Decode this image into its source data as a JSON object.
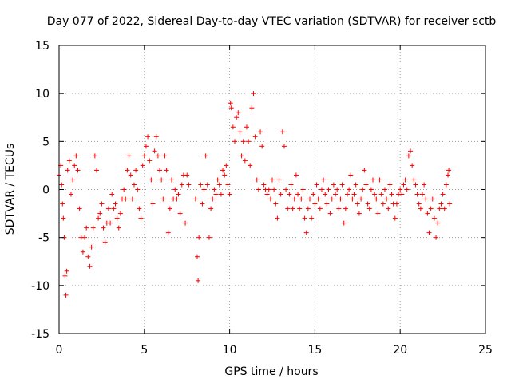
{
  "chart_data": {
    "type": "scatter",
    "title": "Day 077 of 2022, Sidereal Day-to-day VTEC variation (SDTVAR) for receiver sctb",
    "xlabel": "GPS time / hours",
    "ylabel": "SDTVAR / TECUs",
    "xlim": [
      0,
      25
    ],
    "ylim": [
      -15,
      15
    ],
    "xticks": [
      0,
      5,
      10,
      15,
      20,
      25
    ],
    "yticks": [
      -15,
      -10,
      -5,
      0,
      5,
      10,
      15
    ],
    "grid": true,
    "marker": "+",
    "series": [
      {
        "name": "sctb",
        "color": "#ff0000",
        "points": [
          [
            0.0,
            1.5
          ],
          [
            0.1,
            2.5
          ],
          [
            0.15,
            0.5
          ],
          [
            0.2,
            -1.5
          ],
          [
            0.25,
            -3.0
          ],
          [
            0.3,
            -5.0
          ],
          [
            0.35,
            -9.0
          ],
          [
            0.4,
            -11.0
          ],
          [
            0.45,
            -8.5
          ],
          [
            0.5,
            2.0
          ],
          [
            0.6,
            3.0
          ],
          [
            0.7,
            -0.5
          ],
          [
            0.8,
            1.0
          ],
          [
            0.9,
            2.5
          ],
          [
            1.0,
            3.5
          ],
          [
            1.1,
            2.0
          ],
          [
            1.2,
            -2.0
          ],
          [
            1.3,
            -5.0
          ],
          [
            1.4,
            -6.5
          ],
          [
            1.5,
            -5.0
          ],
          [
            1.6,
            -4.0
          ],
          [
            1.7,
            -7.0
          ],
          [
            1.8,
            -8.0
          ],
          [
            1.9,
            -6.0
          ],
          [
            2.0,
            -4.0
          ],
          [
            2.1,
            3.5
          ],
          [
            2.2,
            2.0
          ],
          [
            2.3,
            -3.0
          ],
          [
            2.4,
            -2.5
          ],
          [
            2.5,
            -1.5
          ],
          [
            2.6,
            -4.0
          ],
          [
            2.7,
            -5.5
          ],
          [
            2.8,
            -3.5
          ],
          [
            2.9,
            -2.0
          ],
          [
            3.0,
            -3.5
          ],
          [
            3.1,
            -0.5
          ],
          [
            3.2,
            -2.0
          ],
          [
            3.3,
            -1.5
          ],
          [
            3.4,
            -3.0
          ],
          [
            3.5,
            -4.0
          ],
          [
            3.6,
            -2.5
          ],
          [
            3.7,
            -1.0
          ],
          [
            3.8,
            0.0
          ],
          [
            3.9,
            -1.0
          ],
          [
            4.0,
            2.0
          ],
          [
            4.1,
            3.5
          ],
          [
            4.2,
            1.5
          ],
          [
            4.3,
            -1.0
          ],
          [
            4.4,
            0.5
          ],
          [
            4.5,
            2.0
          ],
          [
            4.6,
            0.0
          ],
          [
            4.7,
            -2.0
          ],
          [
            4.8,
            -3.0
          ],
          [
            4.9,
            2.5
          ],
          [
            5.0,
            3.5
          ],
          [
            5.1,
            4.5
          ],
          [
            5.2,
            5.5
          ],
          [
            5.3,
            3.0
          ],
          [
            5.4,
            1.0
          ],
          [
            5.5,
            -1.5
          ],
          [
            5.6,
            4.0
          ],
          [
            5.7,
            5.5
          ],
          [
            5.8,
            3.5
          ],
          [
            5.9,
            2.0
          ],
          [
            6.0,
            1.0
          ],
          [
            6.1,
            -1.0
          ],
          [
            6.2,
            3.5
          ],
          [
            6.3,
            2.0
          ],
          [
            6.4,
            -4.5
          ],
          [
            6.5,
            -2.0
          ],
          [
            6.6,
            1.0
          ],
          [
            6.7,
            -1.0
          ],
          [
            6.8,
            0.0
          ],
          [
            6.9,
            -1.0
          ],
          [
            7.0,
            -0.5
          ],
          [
            7.1,
            -2.5
          ],
          [
            7.2,
            0.5
          ],
          [
            7.3,
            1.5
          ],
          [
            7.4,
            -3.5
          ],
          [
            7.5,
            1.5
          ],
          [
            7.6,
            0.5
          ],
          [
            8.0,
            -1.0
          ],
          [
            8.1,
            -7.0
          ],
          [
            8.15,
            -9.5
          ],
          [
            8.2,
            -5.0
          ],
          [
            8.3,
            0.5
          ],
          [
            8.4,
            -1.5
          ],
          [
            8.5,
            0.0
          ],
          [
            8.6,
            3.5
          ],
          [
            8.7,
            0.5
          ],
          [
            8.8,
            -5.0
          ],
          [
            8.9,
            -2.0
          ],
          [
            9.0,
            -1.0
          ],
          [
            9.1,
            0.0
          ],
          [
            9.2,
            -0.5
          ],
          [
            9.3,
            1.0
          ],
          [
            9.4,
            0.5
          ],
          [
            9.5,
            -0.5
          ],
          [
            9.6,
            2.0
          ],
          [
            9.7,
            1.5
          ],
          [
            9.8,
            2.5
          ],
          [
            9.9,
            0.5
          ],
          [
            10.0,
            -0.5
          ],
          [
            10.05,
            9.0
          ],
          [
            10.1,
            8.5
          ],
          [
            10.2,
            6.5
          ],
          [
            10.3,
            5.0
          ],
          [
            10.4,
            7.5
          ],
          [
            10.5,
            8.0
          ],
          [
            10.6,
            6.0
          ],
          [
            10.7,
            3.5
          ],
          [
            10.8,
            5.0
          ],
          [
            10.9,
            3.0
          ],
          [
            11.0,
            6.5
          ],
          [
            11.1,
            5.0
          ],
          [
            11.2,
            2.5
          ],
          [
            11.3,
            8.5
          ],
          [
            11.4,
            10.0
          ],
          [
            11.5,
            5.5
          ],
          [
            11.6,
            1.0
          ],
          [
            11.7,
            0.0
          ],
          [
            11.8,
            6.0
          ],
          [
            11.9,
            4.5
          ],
          [
            12.0,
            0.5
          ],
          [
            12.1,
            0.0
          ],
          [
            12.2,
            -0.5
          ],
          [
            12.3,
            0.0
          ],
          [
            12.4,
            -1.0
          ],
          [
            12.5,
            1.0
          ],
          [
            12.6,
            0.0
          ],
          [
            12.7,
            -1.5
          ],
          [
            12.8,
            -3.0
          ],
          [
            12.9,
            1.0
          ],
          [
            13.0,
            -0.5
          ],
          [
            13.1,
            6.0
          ],
          [
            13.2,
            4.5
          ],
          [
            13.3,
            0.0
          ],
          [
            13.4,
            -2.0
          ],
          [
            13.5,
            -0.5
          ],
          [
            13.6,
            0.5
          ],
          [
            13.7,
            -2.0
          ],
          [
            13.8,
            -1.0
          ],
          [
            13.9,
            1.5
          ],
          [
            14.0,
            -0.5
          ],
          [
            14.1,
            -2.0
          ],
          [
            14.2,
            -1.0
          ],
          [
            14.3,
            0.0
          ],
          [
            14.4,
            -3.0
          ],
          [
            14.5,
            -4.5
          ],
          [
            14.6,
            -2.0
          ],
          [
            14.7,
            -1.0
          ],
          [
            14.8,
            -3.0
          ],
          [
            14.9,
            -0.5
          ],
          [
            15.0,
            -1.5
          ],
          [
            15.1,
            0.5
          ],
          [
            15.2,
            -1.0
          ],
          [
            15.3,
            -2.0
          ],
          [
            15.4,
            0.0
          ],
          [
            15.5,
            1.0
          ],
          [
            15.6,
            -0.5
          ],
          [
            15.7,
            -1.5
          ],
          [
            15.8,
            0.0
          ],
          [
            15.9,
            -2.5
          ],
          [
            16.0,
            -1.0
          ],
          [
            16.1,
            0.5
          ],
          [
            16.2,
            -0.5
          ],
          [
            16.3,
            0.0
          ],
          [
            16.4,
            -2.0
          ],
          [
            16.5,
            -1.0
          ],
          [
            16.6,
            0.5
          ],
          [
            16.7,
            -3.5
          ],
          [
            16.8,
            -2.0
          ],
          [
            16.9,
            -0.5
          ],
          [
            17.0,
            0.0
          ],
          [
            17.1,
            1.5
          ],
          [
            17.2,
            -1.0
          ],
          [
            17.3,
            -0.5
          ],
          [
            17.4,
            0.5
          ],
          [
            17.5,
            -1.5
          ],
          [
            17.6,
            -2.5
          ],
          [
            17.7,
            -1.0
          ],
          [
            17.8,
            0.0
          ],
          [
            17.9,
            2.0
          ],
          [
            18.0,
            0.5
          ],
          [
            18.1,
            -1.5
          ],
          [
            18.2,
            -2.0
          ],
          [
            18.3,
            0.0
          ],
          [
            18.4,
            1.0
          ],
          [
            18.5,
            -0.5
          ],
          [
            18.6,
            -1.0
          ],
          [
            18.7,
            -2.5
          ],
          [
            18.8,
            1.0
          ],
          [
            18.9,
            -0.5
          ],
          [
            19.0,
            -1.5
          ],
          [
            19.1,
            0.0
          ],
          [
            19.2,
            -1.0
          ],
          [
            19.3,
            -2.0
          ],
          [
            19.4,
            0.5
          ],
          [
            19.5,
            -0.5
          ],
          [
            19.6,
            -1.5
          ],
          [
            19.7,
            -3.0
          ],
          [
            19.8,
            -1.5
          ],
          [
            19.9,
            -0.5
          ],
          [
            20.0,
            0.0
          ],
          [
            20.1,
            -0.5
          ],
          [
            20.2,
            0.5
          ],
          [
            20.3,
            1.0
          ],
          [
            20.4,
            0.0
          ],
          [
            20.5,
            3.5
          ],
          [
            20.6,
            4.0
          ],
          [
            20.7,
            2.5
          ],
          [
            20.8,
            1.0
          ],
          [
            20.9,
            0.5
          ],
          [
            21.0,
            -0.5
          ],
          [
            21.1,
            -1.5
          ],
          [
            21.2,
            -2.0
          ],
          [
            21.3,
            -0.5
          ],
          [
            21.4,
            0.5
          ],
          [
            21.5,
            -1.0
          ],
          [
            21.6,
            -2.5
          ],
          [
            21.7,
            -4.5
          ],
          [
            21.8,
            -2.0
          ],
          [
            21.9,
            -1.0
          ],
          [
            22.0,
            -3.0
          ],
          [
            22.1,
            -5.0
          ],
          [
            22.2,
            -3.5
          ],
          [
            22.3,
            -2.0
          ],
          [
            22.4,
            -1.5
          ],
          [
            22.5,
            -0.5
          ],
          [
            22.6,
            -2.0
          ],
          [
            22.7,
            0.5
          ],
          [
            22.8,
            1.5
          ],
          [
            22.85,
            2.0
          ],
          [
            22.9,
            -1.5
          ]
        ]
      }
    ]
  }
}
